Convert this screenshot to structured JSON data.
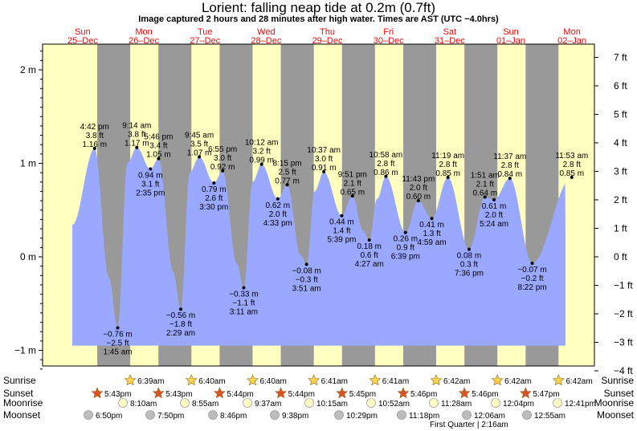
{
  "title": "Lorient: falling  neap tide at 0.2m (0.7ft)",
  "subtitle": "Image captured 2 hours and 28 minutes after high water. Times are AST (UTC −4.0hrs)",
  "colors": {
    "day": "#ffffc0",
    "night": "#999999",
    "water": "#9aa8ff",
    "header_text": "#ff0000",
    "sun_star": "#ffd34a",
    "sunset_star": "#d9532a",
    "moon": "#ffffc8",
    "moon_set": "#bdbdbd"
  },
  "chart_data": {
    "type": "area",
    "title": "Lorient: falling  neap tide at 0.2m (0.7ft)",
    "xlabel": "",
    "ylabel": "",
    "left_axis": {
      "unit": "m",
      "ticks": [
        -1,
        0,
        1,
        2
      ],
      "tick_labels": [
        "−1 m",
        "0 m",
        "1 m",
        "2 m"
      ]
    },
    "right_axis": {
      "unit": "ft",
      "ticks": [
        -4,
        -3,
        -2,
        -1,
        0,
        1,
        2,
        3,
        4,
        5,
        6,
        7
      ],
      "tick_labels": [
        "−4 ft",
        "−3 ft",
        "−2 ft",
        "−1 ft",
        "0 ft",
        "1 ft",
        "2 ft",
        "3 ft",
        "4 ft",
        "5 ft",
        "6 ft",
        "7 ft"
      ]
    },
    "ylim": [
      -1.2,
      2.27
    ],
    "days": [
      {
        "dow": "Sun",
        "date": "25–Dec"
      },
      {
        "dow": "Mon",
        "date": "26–Dec"
      },
      {
        "dow": "Tue",
        "date": "27–Dec"
      },
      {
        "dow": "Wed",
        "date": "28–Dec"
      },
      {
        "dow": "Thu",
        "date": "29–Dec"
      },
      {
        "dow": "Fri",
        "date": "30–Dec"
      },
      {
        "dow": "Sat",
        "date": "31–Dec"
      },
      {
        "dow": "Sun",
        "date": "01–Jan"
      },
      {
        "dow": "Mon",
        "date": "02–Jan"
      }
    ],
    "nights": [
      {
        "start": "Dec 25 17:43",
        "end": "Dec 26 06:39"
      },
      {
        "start": "Dec 26 17:43",
        "end": "Dec 27 06:40"
      },
      {
        "start": "Dec 27 17:44",
        "end": "Dec 28 06:40"
      },
      {
        "start": "Dec 28 17:44",
        "end": "Dec 29 06:41"
      },
      {
        "start": "Dec 29 17:45",
        "end": "Dec 30 06:41"
      },
      {
        "start": "Dec 30 17:46",
        "end": "Dec 31 06:42"
      },
      {
        "start": "Dec 31 17:46",
        "end": "Jan 01 06:42"
      },
      {
        "start": "Jan 01 17:47",
        "end": "Jan 02 06:42"
      }
    ],
    "series": [
      {
        "name": "",
        "points": [
          {
            "time": "Dec 25 16:42",
            "m": 1.16,
            "ft": 3.8,
            "label": "4:42 pm"
          },
          {
            "time": "Dec 25 22:15",
            "m": -0.22
          },
          {
            "time": "Dec 26 01:45",
            "m": -0.76,
            "ft": -2.5,
            "label": "1:45 am"
          },
          {
            "time": "Dec 26 05:30",
            "m": 1.0
          },
          {
            "time": "Dec 26 09:14",
            "m": 1.17,
            "ft": 3.8,
            "label": "9:14 am"
          },
          {
            "time": "Dec 26 14:35",
            "m": 0.94,
            "ft": 3.1,
            "label": "2:35 pm"
          },
          {
            "time": "Dec 26 17:46",
            "m": 1.05,
            "ft": 3.4,
            "label": "5:46 pm"
          },
          {
            "time": "Dec 26 23:30",
            "m": -0.16
          },
          {
            "time": "Dec 27 02:29",
            "m": -0.56,
            "ft": -1.8,
            "label": "2:29 am"
          },
          {
            "time": "Dec 27 06:00",
            "m": 0.9
          },
          {
            "time": "Dec 27 09:45",
            "m": 1.07,
            "ft": 3.5,
            "label": "9:45 am"
          },
          {
            "time": "Dec 27 15:30",
            "m": 0.79,
            "ft": 2.6,
            "label": "3:30 pm"
          },
          {
            "time": "Dec 27 18:55",
            "m": 0.92,
            "ft": 3.0,
            "label": "6:55 pm"
          },
          {
            "time": "Dec 28 00:30",
            "m": -0.07
          },
          {
            "time": "Dec 28 03:11",
            "m": -0.33,
            "ft": -1.1,
            "label": "3:11 am"
          },
          {
            "time": "Dec 28 06:40",
            "m": 0.8
          },
          {
            "time": "Dec 28 10:12",
            "m": 0.99,
            "ft": 3.2,
            "label": "10:12 am"
          },
          {
            "time": "Dec 28 16:33",
            "m": 0.62,
            "ft": 2.0,
            "label": "4:33 pm"
          },
          {
            "time": "Dec 28 20:15",
            "m": 0.77,
            "ft": 2.5,
            "label": "8:15 pm"
          },
          {
            "time": "Dec 29 01:30",
            "m": 0.02
          },
          {
            "time": "Dec 29 03:51",
            "m": -0.08,
            "ft": -0.3,
            "label": "3:51 am"
          },
          {
            "time": "Dec 29 07:00",
            "m": 0.7
          },
          {
            "time": "Dec 29 10:37",
            "m": 0.91,
            "ft": 3.0,
            "label": "10:37 am"
          },
          {
            "time": "Dec 29 17:39",
            "m": 0.44,
            "ft": 1.4,
            "label": "5:39 pm"
          },
          {
            "time": "Dec 29 21:51",
            "m": 0.65,
            "ft": 2.1,
            "label": "9:51 pm"
          },
          {
            "time": "Dec 30 02:00",
            "m": 0.28
          },
          {
            "time": "Dec 30 04:27",
            "m": 0.18,
            "ft": 0.6,
            "label": "4:27 am"
          },
          {
            "time": "Dec 30 07:30",
            "m": 0.62
          },
          {
            "time": "Dec 30 10:58",
            "m": 0.86,
            "ft": 2.8,
            "label": "10:58 am"
          },
          {
            "time": "Dec 30 18:39",
            "m": 0.26,
            "ft": 0.9,
            "label": "6:39 pm"
          },
          {
            "time": "Dec 30 23:43",
            "m": 0.6,
            "ft": 2.0,
            "label": "11:43 pm"
          },
          {
            "time": "Dec 31 04:59",
            "m": 0.41,
            "ft": 1.3,
            "label": "4:59 am"
          },
          {
            "time": "Dec 31 11:19",
            "m": 0.85,
            "ft": 2.8,
            "label": "11:19 am"
          },
          {
            "time": "Dec 31 19:36",
            "m": 0.08,
            "ft": 0.3,
            "label": "7:36 pm"
          },
          {
            "time": "Jan 01 01:51",
            "m": 0.64,
            "ft": 2.1,
            "label": "1:51 am"
          },
          {
            "time": "Jan 01 05:24",
            "m": 0.61,
            "ft": 2.0,
            "label": "5:24 am"
          },
          {
            "time": "Jan 01 11:37",
            "m": 0.84,
            "ft": 2.8,
            "label": "11:37 am"
          },
          {
            "time": "Jan 01 20:22",
            "m": -0.07,
            "ft": -0.2,
            "label": "8:22 pm"
          },
          {
            "time": "Jan 02 11:53",
            "m": 0.85,
            "ft": 2.8,
            "label": "11:53 am"
          }
        ]
      }
    ],
    "event_rows": {
      "sunrise": {
        "label": "Sunrise",
        "times": [
          "6:39am",
          "6:40am",
          "6:40am",
          "6:41am",
          "6:41am",
          "6:42am",
          "6:42am",
          "6:42am"
        ]
      },
      "sunset": {
        "label": "Sunset",
        "times": [
          "5:43pm",
          "5:43pm",
          "5:44pm",
          "5:44pm",
          "5:45pm",
          "5:46pm",
          "5:46pm",
          "5:47pm"
        ]
      },
      "moonrise": {
        "label": "Moonrise",
        "times": [
          "8:10am",
          "8:55am",
          "9:37am",
          "10:15am",
          "10:52am",
          "11:28am",
          "12:04pm",
          "12:41pm"
        ]
      },
      "moonset": {
        "label": "Moonset",
        "times": [
          "6:50pm",
          "7:50pm",
          "8:46pm",
          "9:38pm",
          "10:29pm",
          "11:18pm",
          "12:06am",
          "12:55am"
        ]
      }
    },
    "moon_phase": {
      "label": "First Quarter",
      "time": "2:16am"
    }
  }
}
